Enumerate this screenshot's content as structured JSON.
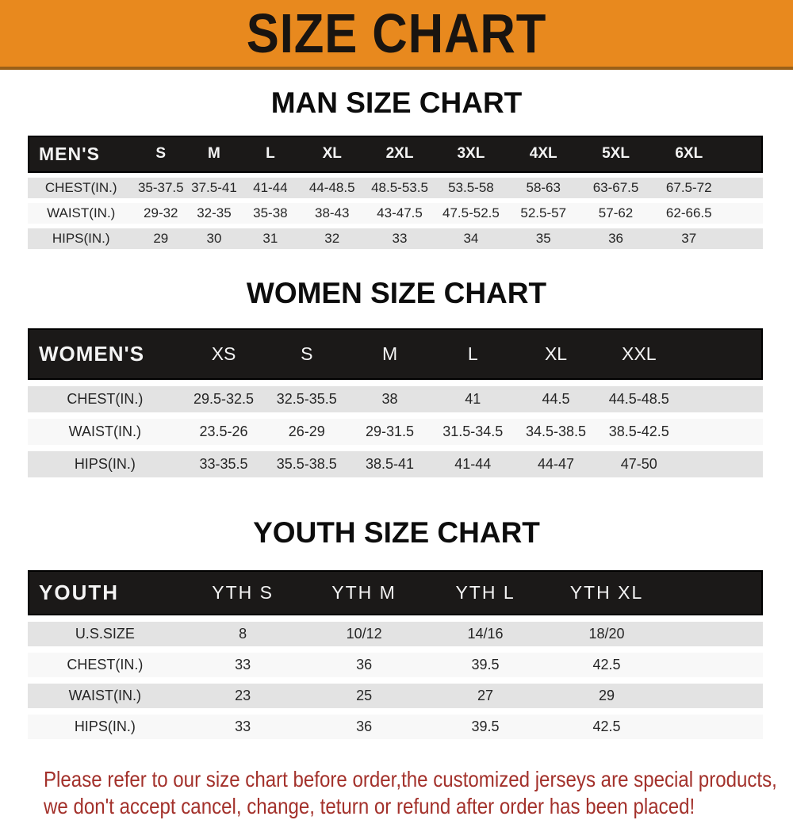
{
  "banner": {
    "title": "SIZE CHART"
  },
  "colors": {
    "banner_orange": "#E8891E",
    "header_bar_black": "#1B1918",
    "row_gray": "#E3E3E3",
    "row_white": "#F8F8F8",
    "note_red": "#A3312B"
  },
  "sections": [
    {
      "heading": "MAN SIZE CHART",
      "header": [
        "MEN'S",
        "S",
        "M",
        "L",
        "XL",
        "2XL",
        "3XL",
        "4XL",
        "5XL",
        "6XL"
      ],
      "rows": [
        [
          "CHEST(IN.)",
          "35-37.5",
          "37.5-41",
          "41-44",
          "44-48.5",
          "48.5-53.5",
          "53.5-58",
          "58-63",
          "63-67.5",
          "67.5-72"
        ],
        [
          "WAIST(IN.)",
          "29-32",
          "32-35",
          "35-38",
          "38-43",
          "43-47.5",
          "47.5-52.5",
          "52.5-57",
          "57-62",
          "62-66.5"
        ],
        [
          "HIPS(IN.)",
          "29",
          "30",
          "31",
          "32",
          "33",
          "34",
          "35",
          "36",
          "37"
        ]
      ]
    },
    {
      "heading": "WOMEN SIZE CHART",
      "header": [
        "WOMEN'S",
        "XS",
        "S",
        "M",
        "L",
        "XL",
        "XXL"
      ],
      "rows": [
        [
          "CHEST(IN.)",
          "29.5-32.5",
          "32.5-35.5",
          "38",
          "41",
          "44.5",
          "44.5-48.5"
        ],
        [
          "WAIST(IN.)",
          "23.5-26",
          "26-29",
          "29-31.5",
          "31.5-34.5",
          "34.5-38.5",
          "38.5-42.5"
        ],
        [
          "HIPS(IN.)",
          "33-35.5",
          "35.5-38.5",
          "38.5-41",
          "41-44",
          "44-47",
          "47-50"
        ]
      ]
    },
    {
      "heading": "YOUTH SIZE CHART",
      "header": [
        "YOUTH",
        "YTH S",
        "YTH M",
        "YTH L",
        "YTH XL"
      ],
      "rows": [
        [
          "U.S.SIZE",
          "8",
          "10/12",
          "14/16",
          "18/20"
        ],
        [
          "CHEST(IN.)",
          "33",
          "36",
          "39.5",
          "42.5"
        ],
        [
          "WAIST(IN.)",
          "23",
          "25",
          "27",
          "29"
        ],
        [
          "HIPS(IN.)",
          "33",
          "36",
          "39.5",
          "42.5"
        ]
      ]
    }
  ],
  "footnote": {
    "line1": "Please refer to our size chart before order,the customized jerseys are special products,",
    "line2": "we don't accept cancel, change, teturn or refund after order has been placed!"
  }
}
